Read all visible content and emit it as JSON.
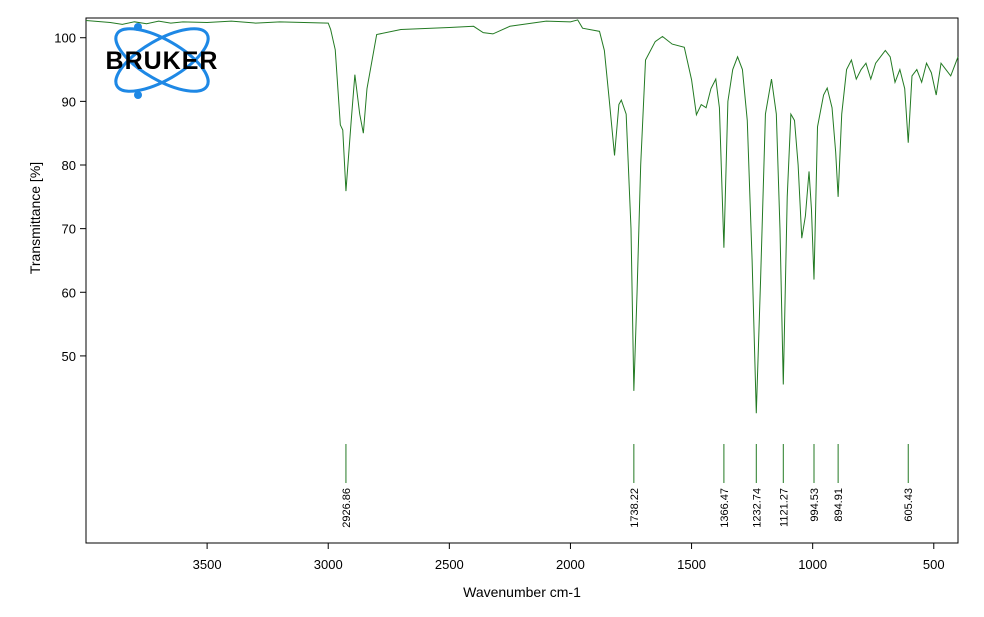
{
  "chart_data": {
    "type": "line",
    "logo": "BRUKER",
    "x_label": "Wavenumber cm-1",
    "y_label": "Transmittance [%]",
    "xlim": [
      4000,
      400
    ],
    "ylim": [
      20.6,
      103.1
    ],
    "xticks": [
      3500,
      3000,
      2500,
      2000,
      1500,
      1000,
      500
    ],
    "yticks": [
      50,
      60,
      70,
      80,
      90,
      100
    ],
    "color": "#237a23",
    "x": [
      4000,
      3900,
      3850,
      3800,
      3750,
      3700,
      3650,
      3600,
      3500,
      3400,
      3300,
      3200,
      3100,
      3000,
      2990,
      2971,
      2950,
      2940,
      2926.86,
      2905,
      2890,
      2870,
      2855,
      2840,
      2800,
      2700,
      2500,
      2400,
      2360,
      2320,
      2250,
      2100,
      2000,
      1970,
      1950,
      1880,
      1860,
      1840,
      1818,
      1800,
      1790,
      1770,
      1750,
      1738.22,
      1725,
      1710,
      1690,
      1650,
      1620,
      1580,
      1530,
      1500,
      1480,
      1460,
      1440,
      1420,
      1400,
      1385,
      1366.47,
      1350,
      1330,
      1310,
      1290,
      1270,
      1250,
      1232.74,
      1215,
      1195,
      1170,
      1150,
      1135,
      1121.27,
      1105,
      1090,
      1075,
      1060,
      1045,
      1030,
      1015,
      1005,
      994.53,
      980,
      955,
      940,
      920,
      905,
      894.91,
      880,
      860,
      840,
      820,
      800,
      780,
      760,
      740,
      720,
      700,
      680,
      660,
      640,
      620,
      605.43,
      590,
      570,
      550,
      530,
      510,
      490,
      470,
      450,
      430,
      410,
      400
    ],
    "values": [
      102.7,
      102.4,
      102.1,
      102.5,
      102.2,
      102.6,
      102.3,
      102.5,
      102.4,
      102.6,
      102.3,
      102.5,
      102.4,
      102.3,
      101.3,
      98.1,
      86.3,
      85.5,
      75.9,
      87,
      94.2,
      88,
      85,
      92,
      100.5,
      101.3,
      101.6,
      101.8,
      100.8,
      100.6,
      101.8,
      102.6,
      102.5,
      102.8,
      101.5,
      101,
      98,
      90.3,
      81.5,
      89.5,
      90.2,
      88,
      70,
      44.5,
      60,
      80,
      96.5,
      99.4,
      100.2,
      99,
      98.5,
      93.4,
      87.9,
      89.5,
      89,
      92,
      93.5,
      89,
      67,
      90,
      95,
      97,
      95,
      87,
      65,
      41,
      62,
      88,
      93.5,
      88,
      70,
      45.5,
      75,
      88,
      87,
      80,
      68.5,
      72,
      79,
      73,
      62,
      86,
      91,
      92.1,
      89,
      82,
      75,
      88,
      95,
      96.5,
      93.5,
      95,
      96,
      93.5,
      96,
      97,
      98,
      97,
      93,
      95,
      92,
      83.5,
      94,
      95,
      93,
      96,
      94.5,
      91,
      96,
      95,
      94,
      96,
      97
    ],
    "peaks": [
      2926.86,
      1738.22,
      1366.47,
      1232.74,
      1121.27,
      994.53,
      894.91,
      605.43
    ]
  }
}
